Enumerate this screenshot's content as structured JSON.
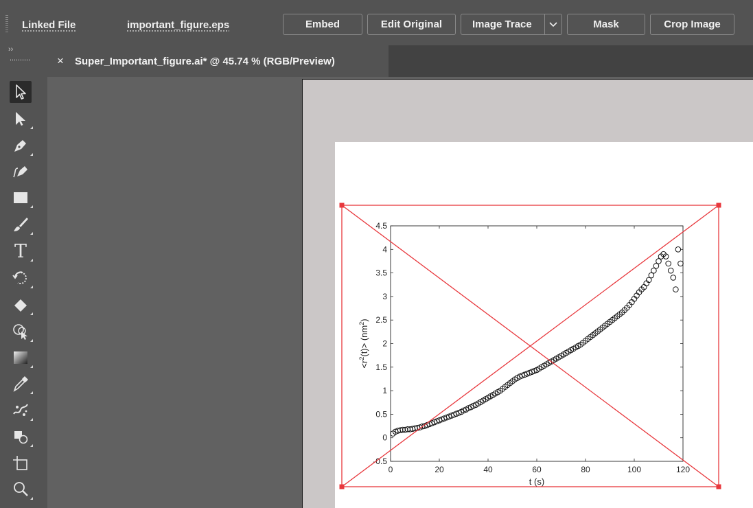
{
  "control_bar": {
    "linked_file_label": "Linked File",
    "file_name": "important_figure.eps",
    "buttons": {
      "embed": "Embed",
      "edit_original": "Edit Original",
      "image_trace": "Image Trace",
      "mask": "Mask",
      "crop_image": "Crop Image"
    }
  },
  "document_tab": {
    "close_glyph": "×",
    "title": "Super_Important_figure.ai* @ 45.74 % (RGB/Preview)"
  },
  "toolbar": {
    "collapse_glyph": "››",
    "tools": [
      {
        "name": "selection-tool",
        "active": true
      },
      {
        "name": "direct-selection-tool"
      },
      {
        "name": "pen-tool"
      },
      {
        "name": "curvature-tool"
      },
      {
        "name": "rectangle-tool"
      },
      {
        "name": "paintbrush-tool"
      },
      {
        "name": "type-tool",
        "glyph": "T"
      },
      {
        "name": "rotate-tool"
      },
      {
        "name": "eraser-tool"
      },
      {
        "name": "shape-builder-tool"
      },
      {
        "name": "gradient-tool"
      },
      {
        "name": "eyedropper-tool"
      },
      {
        "name": "symbol-sprayer-tool"
      },
      {
        "name": "live-paint-tool"
      },
      {
        "name": "artboard-tool"
      },
      {
        "name": "zoom-tool"
      }
    ]
  },
  "colors": {
    "ui_bg": "#535353",
    "tab_strip": "#424242",
    "canvas": "#616161",
    "selection": "#e8383d",
    "artboard": "#ffffff",
    "pasteboard": "#cbc7c7"
  },
  "chart_data": {
    "type": "scatter",
    "xlabel": "t (s)",
    "ylabel_parts": {
      "pre": "<r",
      "sup1": "2",
      "mid": "(t)> (nm",
      "sup2": "2",
      "post": ")"
    },
    "xlim": [
      0,
      120
    ],
    "ylim": [
      -0.5,
      4.5
    ],
    "xticks": [
      0,
      20,
      40,
      60,
      80,
      100,
      120
    ],
    "yticks": [
      -0.5,
      0,
      0.5,
      1,
      1.5,
      2,
      2.5,
      3,
      3.5,
      4,
      4.5
    ],
    "marker": "open-circle",
    "x": [
      1,
      2,
      3,
      4,
      5,
      6,
      7,
      8,
      9,
      10,
      11,
      12,
      13,
      14,
      15,
      16,
      17,
      18,
      19,
      20,
      21,
      22,
      23,
      24,
      25,
      26,
      27,
      28,
      29,
      30,
      31,
      32,
      33,
      34,
      35,
      36,
      37,
      38,
      39,
      40,
      41,
      42,
      43,
      44,
      45,
      46,
      47,
      48,
      49,
      50,
      51,
      52,
      53,
      54,
      55,
      56,
      57,
      58,
      59,
      60,
      61,
      62,
      63,
      64,
      65,
      66,
      67,
      68,
      69,
      70,
      71,
      72,
      73,
      74,
      75,
      76,
      77,
      78,
      79,
      80,
      81,
      82,
      83,
      84,
      85,
      86,
      87,
      88,
      89,
      90,
      91,
      92,
      93,
      94,
      95,
      96,
      97,
      98,
      99,
      100,
      101,
      102,
      103,
      104,
      105,
      106,
      107,
      108,
      109,
      110,
      111,
      112,
      113,
      114,
      115,
      116,
      117,
      118,
      119
    ],
    "y": [
      0.09,
      0.13,
      0.15,
      0.16,
      0.17,
      0.17,
      0.18,
      0.18,
      0.19,
      0.2,
      0.21,
      0.22,
      0.24,
      0.25,
      0.27,
      0.29,
      0.31,
      0.33,
      0.35,
      0.37,
      0.39,
      0.41,
      0.43,
      0.45,
      0.47,
      0.49,
      0.51,
      0.53,
      0.55,
      0.58,
      0.6,
      0.63,
      0.65,
      0.68,
      0.7,
      0.73,
      0.76,
      0.79,
      0.82,
      0.85,
      0.88,
      0.91,
      0.94,
      0.97,
      1.0,
      1.04,
      1.08,
      1.12,
      1.16,
      1.2,
      1.24,
      1.27,
      1.3,
      1.32,
      1.34,
      1.36,
      1.38,
      1.4,
      1.42,
      1.44,
      1.47,
      1.5,
      1.53,
      1.56,
      1.59,
      1.62,
      1.65,
      1.68,
      1.71,
      1.74,
      1.77,
      1.8,
      1.83,
      1.86,
      1.89,
      1.92,
      1.95,
      1.98,
      2.02,
      2.06,
      2.1,
      2.14,
      2.18,
      2.22,
      2.26,
      2.3,
      2.34,
      2.38,
      2.42,
      2.46,
      2.5,
      2.54,
      2.58,
      2.62,
      2.66,
      2.71,
      2.76,
      2.82,
      2.88,
      2.95,
      3.02,
      3.09,
      3.15,
      3.2,
      3.28,
      3.35,
      3.45,
      3.55,
      3.65,
      3.75,
      3.85,
      3.9,
      3.85,
      3.7,
      3.55,
      3.4,
      3.15,
      4.0,
      3.7
    ]
  },
  "selection_bbox": {
    "kind": "linked-image-placeholder"
  }
}
